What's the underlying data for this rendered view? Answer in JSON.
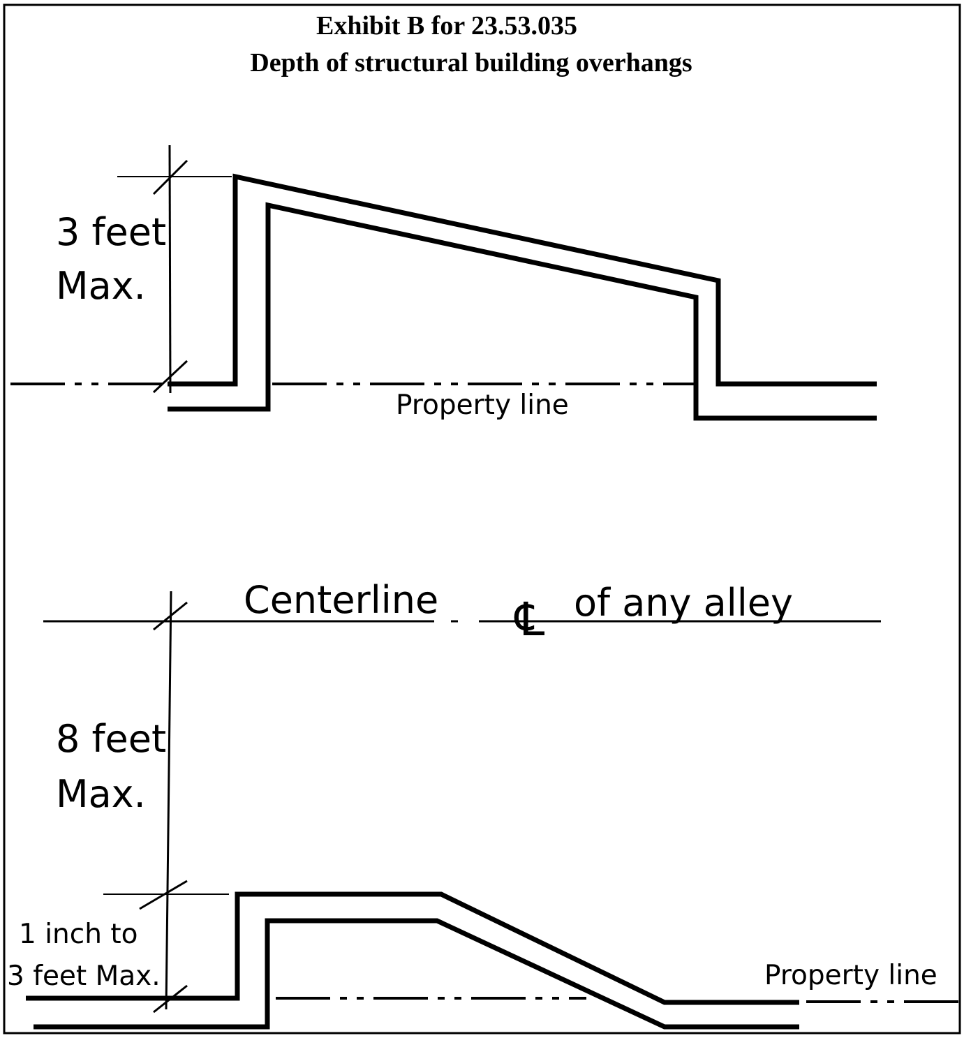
{
  "title": {
    "line1": "Exhibit B for 23.53.035",
    "line2": "Depth of structural building overhangs"
  },
  "top_diagram": {
    "dimension_line1": "3 feet",
    "dimension_line2": "Max.",
    "property_line_label": "Property line"
  },
  "bottom_diagram": {
    "centerline_label": "Centerline",
    "centerline_symbol": "℄",
    "alley_label": "of any alley",
    "alley_dimension_line1": "8 feet",
    "alley_dimension_line2": "Max.",
    "overhang_dimension_line1": "1 inch to",
    "overhang_dimension_line2": "3 feet Max.",
    "property_line_label": "Property line"
  }
}
